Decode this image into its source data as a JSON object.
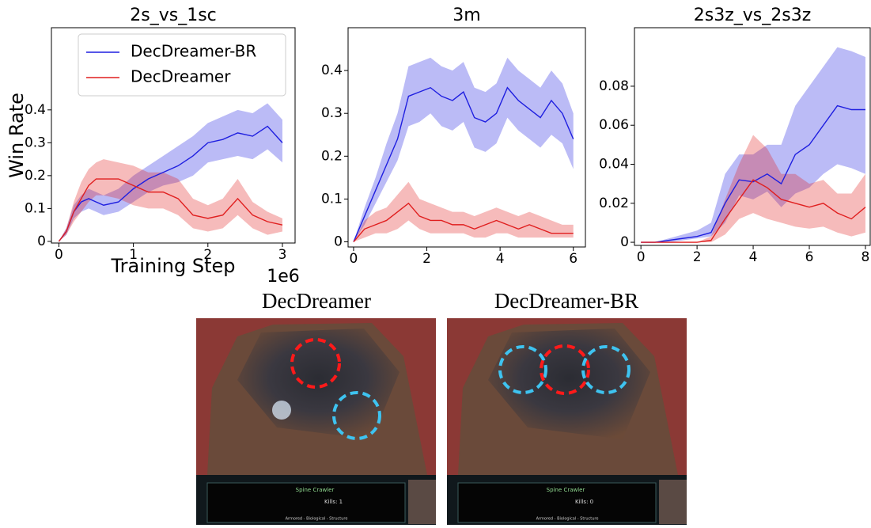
{
  "chart_data": [
    {
      "type": "line",
      "title": "2s_vs_1sc",
      "ylabel": "Win Rate",
      "xlabel": "Training Step",
      "x_offset_label": "1e6",
      "legend": "upper left",
      "x": [
        0,
        0.1,
        0.2,
        0.3,
        0.4,
        0.5,
        0.6,
        0.8,
        1.0,
        1.2,
        1.4,
        1.6,
        1.8,
        2.0,
        2.2,
        2.4,
        2.6,
        2.8,
        3.0
      ],
      "xlim": [
        -0.1,
        3.17
      ],
      "ylim": [
        -0.005,
        0.65
      ],
      "xticks": [
        0,
        1,
        2,
        3
      ],
      "yticks": [
        0,
        0.1,
        0.2,
        0.3,
        0.4
      ],
      "series": [
        {
          "name": "DecDreamer-BR",
          "color": "#1f1fe0",
          "values": [
            0,
            0.03,
            0.09,
            0.12,
            0.13,
            0.12,
            0.11,
            0.12,
            0.16,
            0.19,
            0.21,
            0.23,
            0.26,
            0.3,
            0.31,
            0.33,
            0.32,
            0.35,
            0.3
          ],
          "lower": [
            0,
            0.02,
            0.07,
            0.09,
            0.1,
            0.09,
            0.08,
            0.09,
            0.12,
            0.15,
            0.17,
            0.18,
            0.2,
            0.24,
            0.25,
            0.26,
            0.25,
            0.28,
            0.24
          ],
          "upper": [
            0,
            0.04,
            0.11,
            0.14,
            0.16,
            0.15,
            0.14,
            0.16,
            0.2,
            0.23,
            0.26,
            0.29,
            0.32,
            0.36,
            0.38,
            0.4,
            0.39,
            0.42,
            0.37
          ]
        },
        {
          "name": "DecDreamer",
          "color": "#e01f1f",
          "values": [
            0,
            0.03,
            0.09,
            0.13,
            0.17,
            0.19,
            0.19,
            0.19,
            0.17,
            0.15,
            0.15,
            0.13,
            0.08,
            0.07,
            0.08,
            0.13,
            0.08,
            0.06,
            0.05
          ],
          "lower": [
            0,
            0.02,
            0.06,
            0.09,
            0.12,
            0.14,
            0.14,
            0.13,
            0.11,
            0.1,
            0.1,
            0.08,
            0.04,
            0.03,
            0.04,
            0.08,
            0.04,
            0.02,
            0.03
          ],
          "upper": [
            0,
            0.04,
            0.12,
            0.18,
            0.22,
            0.24,
            0.25,
            0.24,
            0.23,
            0.21,
            0.21,
            0.19,
            0.13,
            0.11,
            0.13,
            0.19,
            0.12,
            0.09,
            0.07
          ]
        }
      ]
    },
    {
      "type": "line",
      "title": "3m",
      "x": [
        0,
        0.3,
        0.6,
        0.9,
        1.2,
        1.5,
        1.8,
        2.1,
        2.4,
        2.7,
        3.0,
        3.3,
        3.6,
        3.9,
        4.2,
        4.5,
        4.8,
        5.1,
        5.4,
        5.7,
        6.0
      ],
      "xlim": [
        -0.15,
        6.33
      ],
      "ylim": [
        -0.012,
        0.5
      ],
      "xticks": [
        0,
        2,
        4,
        6
      ],
      "yticks": [
        0,
        0.1,
        0.2,
        0.3,
        0.4
      ],
      "series": [
        {
          "color": "#1f1fe0",
          "values": [
            0,
            0.06,
            0.12,
            0.18,
            0.24,
            0.34,
            0.35,
            0.36,
            0.34,
            0.33,
            0.35,
            0.29,
            0.28,
            0.3,
            0.36,
            0.33,
            0.31,
            0.29,
            0.33,
            0.3,
            0.24
          ],
          "lower": [
            0,
            0.04,
            0.09,
            0.14,
            0.19,
            0.27,
            0.28,
            0.3,
            0.27,
            0.26,
            0.28,
            0.22,
            0.21,
            0.23,
            0.29,
            0.26,
            0.24,
            0.22,
            0.25,
            0.23,
            0.17
          ],
          "upper": [
            0,
            0.08,
            0.15,
            0.23,
            0.3,
            0.41,
            0.42,
            0.43,
            0.41,
            0.4,
            0.42,
            0.36,
            0.35,
            0.37,
            0.43,
            0.4,
            0.38,
            0.36,
            0.4,
            0.37,
            0.3
          ]
        },
        {
          "color": "#e01f1f",
          "values": [
            0,
            0.03,
            0.04,
            0.05,
            0.07,
            0.09,
            0.06,
            0.05,
            0.05,
            0.04,
            0.04,
            0.03,
            0.04,
            0.05,
            0.04,
            0.03,
            0.04,
            0.03,
            0.02,
            0.02,
            0.02
          ],
          "lower": [
            0,
            0.01,
            0.02,
            0.02,
            0.03,
            0.05,
            0.03,
            0.02,
            0.02,
            0.02,
            0.02,
            0.01,
            0.01,
            0.02,
            0.02,
            0.01,
            0.01,
            0.01,
            0.01,
            0.01,
            0.01
          ],
          "upper": [
            0,
            0.05,
            0.07,
            0.08,
            0.11,
            0.14,
            0.1,
            0.09,
            0.08,
            0.07,
            0.07,
            0.06,
            0.07,
            0.08,
            0.07,
            0.06,
            0.07,
            0.06,
            0.05,
            0.04,
            0.04
          ]
        }
      ]
    },
    {
      "type": "line",
      "title": "2s3z_vs_2s3z",
      "x": [
        0,
        0.5,
        1,
        1.5,
        2,
        2.5,
        3,
        3.5,
        4,
        4.5,
        5,
        5.5,
        6,
        6.5,
        7,
        7.5,
        8
      ],
      "xlim": [
        -0.23,
        8.17
      ],
      "ylim": [
        -0.0016,
        0.11
      ],
      "xticks": [
        0,
        2,
        4,
        6,
        8
      ],
      "yticks": [
        0,
        0.02,
        0.04,
        0.06,
        0.08
      ],
      "series": [
        {
          "color": "#1f1fe0",
          "values": [
            0,
            0,
            0.001,
            0.002,
            0.003,
            0.005,
            0.02,
            0.032,
            0.031,
            0.035,
            0.03,
            0.045,
            0.05,
            0.06,
            0.07,
            0.068,
            0.068
          ],
          "lower": [
            0,
            0,
            0,
            0.001,
            0.002,
            0.003,
            0.01,
            0.024,
            0.022,
            0.026,
            0.018,
            0.025,
            0.028,
            0.035,
            0.04,
            0.038,
            0.035
          ],
          "upper": [
            0,
            0,
            0.002,
            0.004,
            0.006,
            0.01,
            0.035,
            0.045,
            0.045,
            0.05,
            0.05,
            0.07,
            0.08,
            0.09,
            0.1,
            0.098,
            0.095
          ]
        },
        {
          "color": "#e01f1f",
          "values": [
            0,
            0,
            0,
            0,
            0,
            0.001,
            0.012,
            0.022,
            0.032,
            0.028,
            0.022,
            0.02,
            0.018,
            0.02,
            0.015,
            0.012,
            0.018
          ],
          "lower": [
            0,
            0,
            0,
            0,
            0,
            0,
            0.004,
            0.012,
            0.015,
            0.012,
            0.01,
            0.008,
            0.007,
            0.008,
            0.005,
            0.003,
            0.005
          ],
          "upper": [
            0,
            0,
            0,
            0,
            0,
            0.003,
            0.022,
            0.04,
            0.055,
            0.048,
            0.035,
            0.035,
            0.03,
            0.032,
            0.025,
            0.025,
            0.035
          ]
        }
      ]
    }
  ],
  "screenshots": [
    {
      "title": "DecDreamer",
      "unit": "Spine Crawler",
      "kills": "Kills: 1",
      "attributes": "Armored - Biological - Structure"
    },
    {
      "title": "DecDreamer-BR",
      "unit": "Spine Crawler",
      "kills": "Kills: 0",
      "attributes": "Armored - Biological - Structure"
    }
  ]
}
